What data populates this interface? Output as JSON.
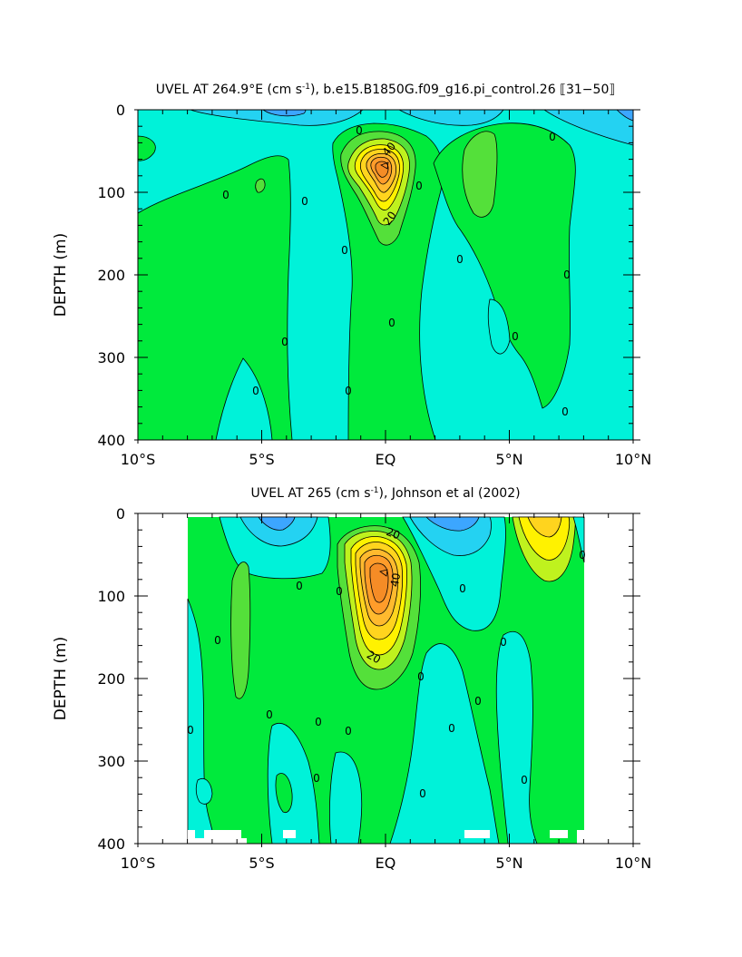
{
  "chart_data": [
    {
      "type": "heatmap",
      "title": "UVEL AT 264.9°E (cm s⁻¹), b.e15.B1850G.f09_g16.pi_control.26 ⟦31-50⟧",
      "title_main": "UVEL AT 264.9°E (cm s",
      "title_sup": "-1",
      "title_rest": "), b.e15.B1850G.f09_g16.pi_control.26 ⟦31−50⟧",
      "xlabel": "",
      "ylabel": "DEPTH (m)",
      "xlim": [
        -10,
        10
      ],
      "ylim": [
        400,
        0
      ],
      "x_ticks": [
        -10,
        -5,
        0,
        5,
        10
      ],
      "x_tick_labels": [
        "10°S",
        "5°S",
        "EQ",
        "5°N",
        "10°N"
      ],
      "y_ticks": [
        0,
        100,
        200,
        300,
        400
      ],
      "y_tick_labels": [
        "0",
        "100",
        "200",
        "300",
        "400"
      ],
      "contour_interval": 10,
      "max_value_approx": 80,
      "max_location": {
        "lat": 0,
        "depth": 70
      },
      "contour_labels": [
        {
          "text": "0",
          "lat": -0.1,
          "depth": 25
        },
        {
          "text": "40",
          "lat": 0.3,
          "depth": 45
        },
        {
          "text": "20",
          "lat": 0.3,
          "depth": 130
        },
        {
          "text": "0",
          "lat": 1.3,
          "depth": 90
        },
        {
          "text": "0",
          "lat": -6.4,
          "depth": 105
        },
        {
          "text": "0",
          "lat": -3.3,
          "depth": 112
        },
        {
          "text": "0",
          "lat": -1.7,
          "depth": 170
        },
        {
          "text": "0",
          "lat": 3.0,
          "depth": 180
        },
        {
          "text": "0",
          "lat": 6.7,
          "depth": 32
        },
        {
          "text": "0",
          "lat": 7.3,
          "depth": 198
        },
        {
          "text": "0",
          "lat": 0.2,
          "depth": 258
        },
        {
          "text": "0",
          "lat": -4.1,
          "depth": 278
        },
        {
          "text": "0",
          "lat": 5.2,
          "depth": 272
        },
        {
          "text": "0",
          "lat": -5.3,
          "depth": 340
        },
        {
          "text": "0",
          "lat": -1.6,
          "depth": 340
        },
        {
          "text": "0",
          "lat": 7.2,
          "depth": 364
        }
      ]
    },
    {
      "type": "heatmap",
      "title": "UVEL AT 265 (cm s⁻¹), Johnson et al (2002)",
      "title_main": "UVEL AT 265 (cm s",
      "title_sup": "-1",
      "title_rest": "), Johnson et al (2002)",
      "xlabel": "",
      "ylabel": "DEPTH (m)",
      "xlim": [
        -10,
        10
      ],
      "ylim": [
        400,
        0
      ],
      "x_ticks": [
        -10,
        -5,
        0,
        5,
        10
      ],
      "x_tick_labels": [
        "10°S",
        "5°S",
        "EQ",
        "5°N",
        "10°N"
      ],
      "y_ticks": [
        0,
        100,
        200,
        300,
        400
      ],
      "y_tick_labels": [
        "0",
        "100",
        "200",
        "300",
        "400"
      ],
      "data_lat_range": [
        -8,
        8
      ],
      "contour_interval": 10,
      "max_value_approx": 80,
      "max_location": {
        "lat": 0,
        "depth": 70
      },
      "contour_labels": [
        {
          "text": "20",
          "lat": 0.2,
          "depth": 28
        },
        {
          "text": "40",
          "lat": 0.5,
          "depth": 72
        },
        {
          "text": "20",
          "lat": -0.6,
          "depth": 170
        },
        {
          "text": "0",
          "lat": -4.8,
          "depth": 85
        },
        {
          "text": "0",
          "lat": -3.0,
          "depth": 165
        },
        {
          "text": "0",
          "lat": -7.9,
          "depth": 155
        },
        {
          "text": "0",
          "lat": -8.2,
          "depth": 262
        },
        {
          "text": "0",
          "lat": -5.1,
          "depth": 243
        },
        {
          "text": "0",
          "lat": -2.8,
          "depth": 253
        },
        {
          "text": "0",
          "lat": -1.5,
          "depth": 263
        },
        {
          "text": "0",
          "lat": -2.9,
          "depth": 320
        },
        {
          "text": "0",
          "lat": 1.4,
          "depth": 198
        },
        {
          "text": "0",
          "lat": 3.1,
          "depth": 90
        },
        {
          "text": "0",
          "lat": 4.7,
          "depth": 155
        },
        {
          "text": "0",
          "lat": 3.7,
          "depth": 225
        },
        {
          "text": "0",
          "lat": 2.6,
          "depth": 260
        },
        {
          "text": "0",
          "lat": 1.4,
          "depth": 338
        },
        {
          "text": "0",
          "lat": 5.5,
          "depth": 322
        },
        {
          "text": "0",
          "lat": 7.9,
          "depth": 50
        }
      ]
    }
  ],
  "colors": {
    "negative_strong": "#3ca6ff",
    "negative": "#24d2f2",
    "near_zero_neg": "#00f2d9",
    "near_zero_pos": "#14e880",
    "positive_low": "#00ea3c",
    "positive_10": "#54e03a",
    "positive_20": "#bff21e",
    "positive_30": "#fff200",
    "positive_40": "#ffd41e",
    "positive_50": "#ffba2e",
    "positive_60": "#ff9c2a",
    "positive_70": "#f58c26"
  }
}
